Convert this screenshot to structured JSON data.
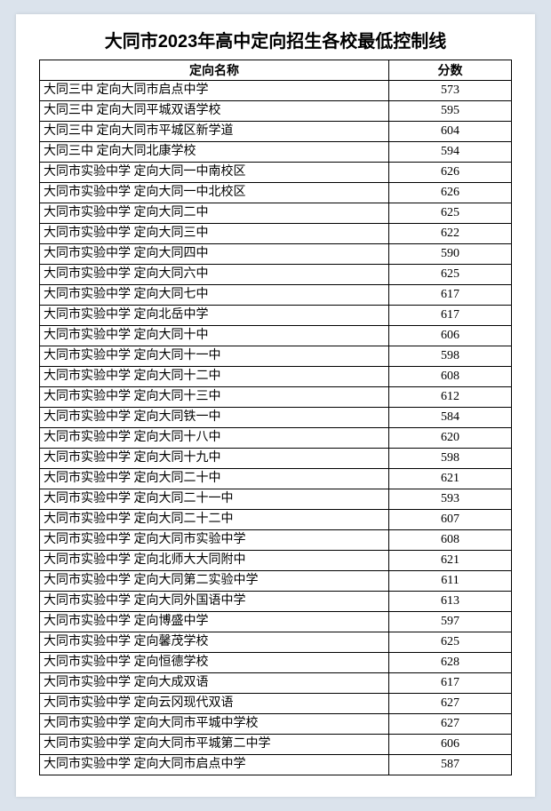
{
  "title": "大同市2023年高中定向招生各校最低控制线",
  "table": {
    "columns": [
      "定向名称",
      "分数"
    ],
    "rows": [
      [
        "大同三中 定向大同市启点中学",
        573
      ],
      [
        "大同三中 定向大同平城双语学校",
        595
      ],
      [
        "大同三中 定向大同市平城区新学道",
        604
      ],
      [
        "大同三中 定向大同北康学校",
        594
      ],
      [
        "大同市实验中学 定向大同一中南校区",
        626
      ],
      [
        "大同市实验中学 定向大同一中北校区",
        626
      ],
      [
        "大同市实验中学 定向大同二中",
        625
      ],
      [
        "大同市实验中学 定向大同三中",
        622
      ],
      [
        "大同市实验中学 定向大同四中",
        590
      ],
      [
        "大同市实验中学 定向大同六中",
        625
      ],
      [
        "大同市实验中学 定向大同七中",
        617
      ],
      [
        "大同市实验中学 定向北岳中学",
        617
      ],
      [
        "大同市实验中学 定向大同十中",
        606
      ],
      [
        "大同市实验中学 定向大同十一中",
        598
      ],
      [
        "大同市实验中学 定向大同十二中",
        608
      ],
      [
        "大同市实验中学 定向大同十三中",
        612
      ],
      [
        "大同市实验中学 定向大同铁一中",
        584
      ],
      [
        "大同市实验中学 定向大同十八中",
        620
      ],
      [
        "大同市实验中学 定向大同十九中",
        598
      ],
      [
        "大同市实验中学 定向大同二十中",
        621
      ],
      [
        "大同市实验中学 定向大同二十一中",
        593
      ],
      [
        "大同市实验中学 定向大同二十二中",
        607
      ],
      [
        "大同市实验中学 定向大同市实验中学",
        608
      ],
      [
        "大同市实验中学 定向北师大大同附中",
        621
      ],
      [
        "大同市实验中学 定向大同第二实验中学",
        611
      ],
      [
        "大同市实验中学 定向大同外国语中学",
        613
      ],
      [
        "大同市实验中学 定向博盛中学",
        597
      ],
      [
        "大同市实验中学 定向馨茂学校",
        625
      ],
      [
        "大同市实验中学 定向恒德学校",
        628
      ],
      [
        "大同市实验中学 定向大成双语",
        617
      ],
      [
        "大同市实验中学 定向云冈现代双语",
        627
      ],
      [
        "大同市实验中学 定向大同市平城中学校",
        627
      ],
      [
        "大同市实验中学 定向大同市平城第二中学",
        606
      ],
      [
        "大同市实验中学 定向大同市启点中学",
        587
      ]
    ]
  }
}
